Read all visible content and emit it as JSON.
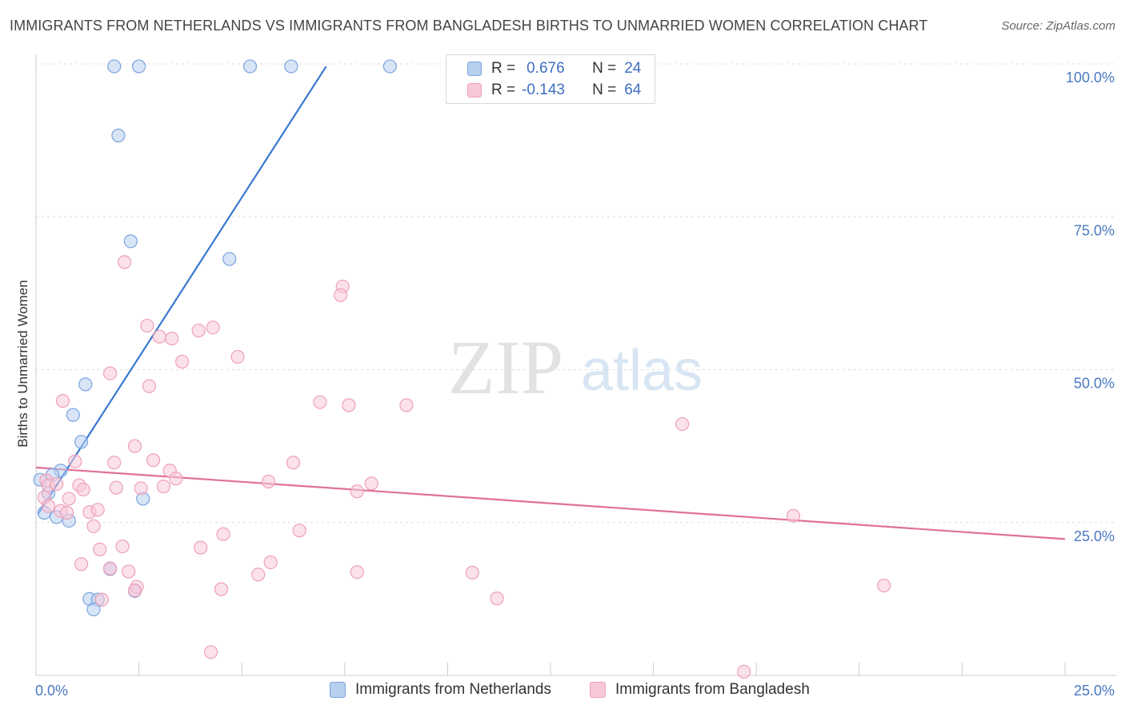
{
  "title": "IMMIGRANTS FROM NETHERLANDS VS IMMIGRANTS FROM BANGLADESH BIRTHS TO UNMARRIED WOMEN CORRELATION CHART",
  "source": "Source: ZipAtlas.com",
  "watermark": {
    "zip": "ZIP",
    "atlas": "atlas"
  },
  "legend": {
    "r_label": "R =",
    "n_label": "N =",
    "rows": [
      {
        "r": "0.676",
        "n": "24"
      },
      {
        "r": "-0.143",
        "n": "64"
      }
    ]
  },
  "colors": {
    "blue_fill": "#b8d0f0",
    "blue_stroke": "#7aa3de",
    "blue_line": "#3a78d0",
    "pink_fill": "#f8c8d8",
    "pink_stroke": "#eea0b8",
    "pink_line": "#e0709a",
    "tick_text": "#4a78c2",
    "grid": "#dddddd"
  },
  "chart_data": {
    "type": "scatter",
    "xlabel": "",
    "ylabel": "Births to Unmarried Women",
    "xlim": [
      0,
      25
    ],
    "ylim": [
      0,
      102
    ],
    "x_tick_labels": [
      {
        "value": 0,
        "label": "0.0%"
      },
      {
        "value": 25,
        "label": "25.0%"
      }
    ],
    "y_tick_labels": [
      {
        "value": 25,
        "label": "25.0%"
      },
      {
        "value": 50,
        "label": "50.0%"
      },
      {
        "value": 75,
        "label": "75.0%"
      },
      {
        "value": 100,
        "label": "100.0%"
      }
    ],
    "series": [
      {
        "name": "Immigrants from Netherlands",
        "color": "blue",
        "points": [
          [
            1.9,
            99.6
          ],
          [
            2.5,
            99.6
          ],
          [
            5.2,
            99.6
          ],
          [
            6.2,
            99.6
          ],
          [
            8.6,
            99.6
          ],
          [
            2.0,
            88.3
          ],
          [
            2.3,
            71.0
          ],
          [
            4.7,
            68.1
          ],
          [
            1.2,
            47.6
          ],
          [
            0.9,
            42.6
          ],
          [
            1.1,
            38.2
          ],
          [
            0.6,
            33.5
          ],
          [
            0.4,
            32.8
          ],
          [
            0.1,
            32.0
          ],
          [
            0.3,
            29.8
          ],
          [
            0.2,
            26.6
          ],
          [
            0.5,
            25.9
          ],
          [
            0.8,
            25.3
          ],
          [
            2.6,
            28.9
          ],
          [
            1.8,
            17.4
          ],
          [
            1.3,
            12.5
          ],
          [
            1.5,
            12.4
          ],
          [
            2.4,
            13.8
          ],
          [
            1.4,
            10.8
          ]
        ],
        "trend": [
          [
            0.05,
            26.4
          ],
          [
            7.05,
            99.6
          ]
        ]
      },
      {
        "name": "Immigrants from Bangladesh",
        "color": "pink",
        "points": [
          [
            2.15,
            67.6
          ],
          [
            7.45,
            63.6
          ],
          [
            7.4,
            62.2
          ],
          [
            2.7,
            57.2
          ],
          [
            3.0,
            55.4
          ],
          [
            3.3,
            55.1
          ],
          [
            3.95,
            56.4
          ],
          [
            4.3,
            56.9
          ],
          [
            3.55,
            51.3
          ],
          [
            4.9,
            52.1
          ],
          [
            1.8,
            49.4
          ],
          [
            2.75,
            47.3
          ],
          [
            0.65,
            44.9
          ],
          [
            6.9,
            44.7
          ],
          [
            7.6,
            44.2
          ],
          [
            9.0,
            44.2
          ],
          [
            15.7,
            41.1
          ],
          [
            2.4,
            37.5
          ],
          [
            0.95,
            35.0
          ],
          [
            1.9,
            34.8
          ],
          [
            2.85,
            35.2
          ],
          [
            6.25,
            34.8
          ],
          [
            3.25,
            33.5
          ],
          [
            3.4,
            32.2
          ],
          [
            5.65,
            31.7
          ],
          [
            8.15,
            31.4
          ],
          [
            0.25,
            31.9
          ],
          [
            0.3,
            31.1
          ],
          [
            0.5,
            31.3
          ],
          [
            1.05,
            31.1
          ],
          [
            1.15,
            30.4
          ],
          [
            1.95,
            30.7
          ],
          [
            2.55,
            30.6
          ],
          [
            3.1,
            30.9
          ],
          [
            7.8,
            30.1
          ],
          [
            0.2,
            29.1
          ],
          [
            0.8,
            28.9
          ],
          [
            0.3,
            27.7
          ],
          [
            0.6,
            26.9
          ],
          [
            0.75,
            26.6
          ],
          [
            1.3,
            26.7
          ],
          [
            1.5,
            27.1
          ],
          [
            18.4,
            26.1
          ],
          [
            1.4,
            24.4
          ],
          [
            4.55,
            23.1
          ],
          [
            6.4,
            23.7
          ],
          [
            1.55,
            20.6
          ],
          [
            2.1,
            21.1
          ],
          [
            4.0,
            20.9
          ],
          [
            1.1,
            18.2
          ],
          [
            2.25,
            17.0
          ],
          [
            5.4,
            16.5
          ],
          [
            5.7,
            18.5
          ],
          [
            7.8,
            16.9
          ],
          [
            10.6,
            16.8
          ],
          [
            1.8,
            17.5
          ],
          [
            2.45,
            14.5
          ],
          [
            4.5,
            14.1
          ],
          [
            20.6,
            14.7
          ],
          [
            1.6,
            12.4
          ],
          [
            11.2,
            12.6
          ],
          [
            4.25,
            3.8
          ],
          [
            17.2,
            0.6
          ],
          [
            2.4,
            13.9
          ]
        ],
        "trend": [
          [
            0,
            34.0
          ],
          [
            25,
            22.3
          ]
        ]
      }
    ]
  }
}
